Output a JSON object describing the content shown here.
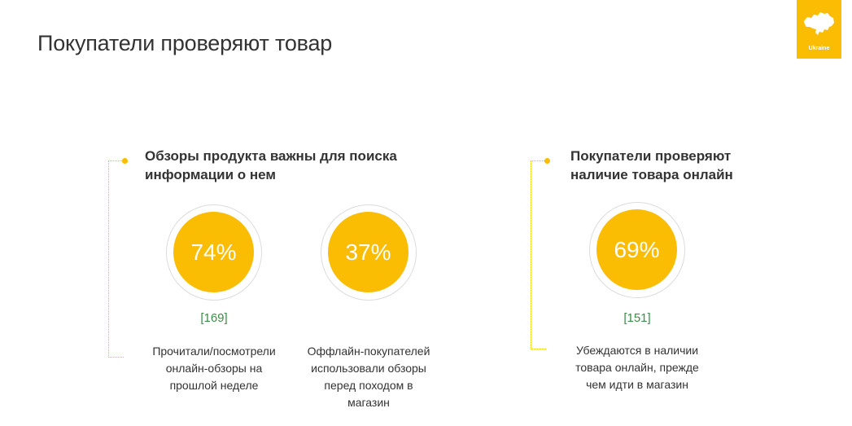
{
  "page": {
    "title": "Покупатели проверяют товар",
    "badge": {
      "label": "Ukraine",
      "icon": "ukraine-map-icon",
      "color": "#FBBC04"
    }
  },
  "groups": [
    {
      "heading": "Обзоры продукта важны для поиска\nинформации о нем",
      "stats": [
        {
          "value": "74%",
          "sample": "[169]",
          "description": "Прочитали/посмотрели\nонлайн-обзоры на\nпрошлой неделе"
        },
        {
          "value": "37%",
          "sample": "",
          "description": "Оффлайн-покупателей\nиспользовали обзоры\nперед походом в\nмагазин"
        }
      ]
    },
    {
      "heading": "Покупатели проверяют\nналичие товара  онлайн",
      "stats": [
        {
          "value": "69%",
          "sample": "[151]",
          "description": "Убеждаются в  наличии\nтовара онлайн, прежде\nчем идти в магазин"
        }
      ]
    }
  ],
  "colors": {
    "accent": "#FBBC04",
    "sample_text": "#3a8f4a",
    "ring": "#dcdcdc"
  }
}
